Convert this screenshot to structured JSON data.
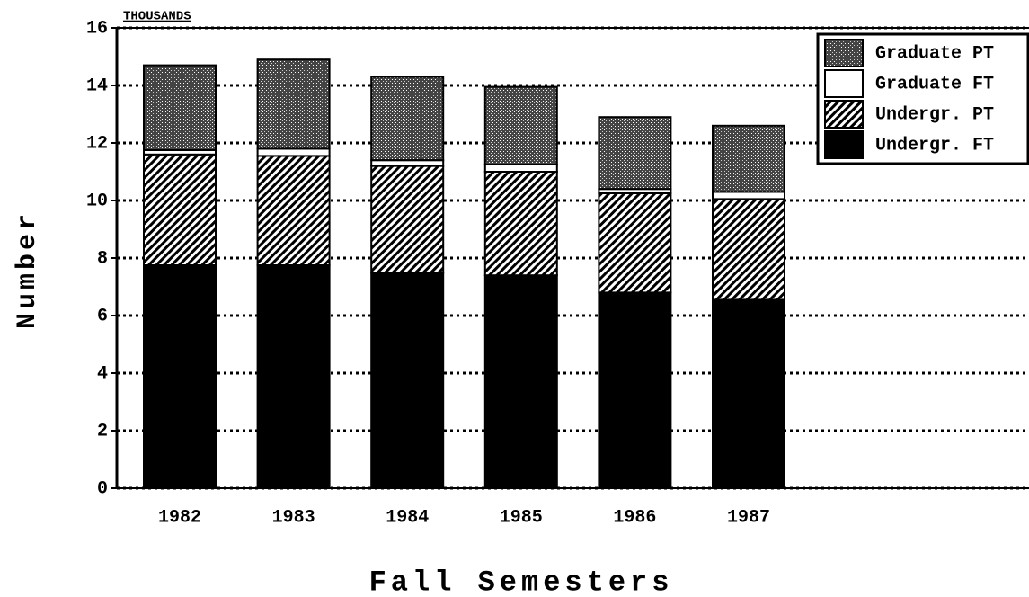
{
  "chart_data": {
    "type": "stacked_bar",
    "unit_label": "THOUSANDS",
    "ylabel": "Number",
    "xlabel": "Fall Semesters",
    "categories": [
      "1982",
      "1983",
      "1984",
      "1985",
      "1986",
      "1987"
    ],
    "series": [
      {
        "name": "Undergr. FT",
        "color": "#000000",
        "pattern": "solid",
        "values": [
          7.75,
          7.75,
          7.5,
          7.4,
          6.8,
          6.55
        ]
      },
      {
        "name": "Undergr. PT",
        "color": "#000000",
        "pattern": "hatch",
        "values": [
          3.85,
          3.8,
          3.7,
          3.6,
          3.45,
          3.5
        ]
      },
      {
        "name": "Graduate FT",
        "color": "#ffffff",
        "pattern": "solid",
        "values": [
          0.15,
          0.25,
          0.2,
          0.25,
          0.15,
          0.25
        ]
      },
      {
        "name": "Graduate PT",
        "color": "#000000",
        "pattern": "dots",
        "values": [
          2.95,
          3.1,
          2.9,
          2.7,
          2.5,
          2.3
        ]
      }
    ],
    "ylim": [
      0,
      16
    ],
    "yticks": [
      0,
      2,
      4,
      6,
      8,
      10,
      12,
      14,
      16
    ],
    "grid": true,
    "legend": "upper right"
  }
}
